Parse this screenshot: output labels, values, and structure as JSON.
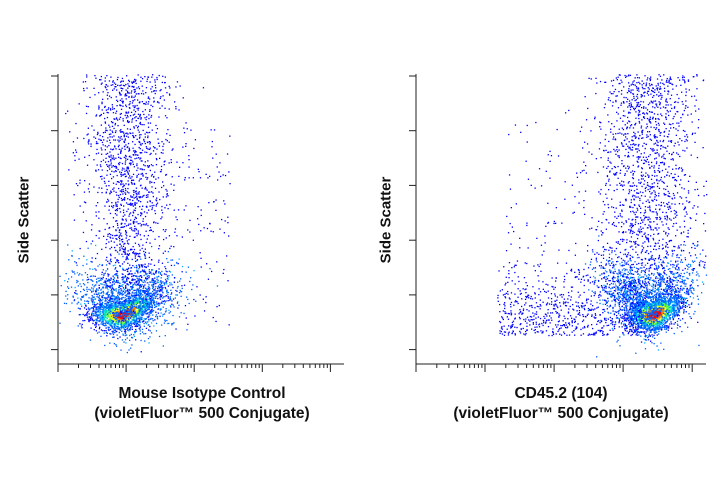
{
  "chart_data": [
    {
      "type": "scatter",
      "subtype": "flow-cytometry-density-dot-plot",
      "title": "",
      "xlabel": "Mouse Isotype Control",
      "xlabel_line2": "(violetFluor™ 500 Conjugate)",
      "ylabel": "Side Scatter",
      "x_scale": "log",
      "y_scale": "linear",
      "x_ticks_visible": true,
      "y_ticks_visible": true,
      "tick_labels_shown": false,
      "grid": false,
      "colormap": [
        "#0000ff",
        "#00a0ff",
        "#00e0c0",
        "#60ff40",
        "#ffff00",
        "#ff8000",
        "#ff0000"
      ],
      "populations": [
        {
          "name": "dense cluster",
          "x_center": 0.23,
          "y_center": 0.17,
          "density": "high"
        },
        {
          "name": "upper tail",
          "x_center": 0.24,
          "y_center": 0.6,
          "density": "low"
        }
      ]
    },
    {
      "type": "scatter",
      "subtype": "flow-cytometry-density-dot-plot",
      "title": "",
      "xlabel": "CD45.2 (104)",
      "xlabel_line2": "(violetFluor™ 500 Conjugate)",
      "ylabel": "Side Scatter",
      "x_scale": "log",
      "y_scale": "linear",
      "x_ticks_visible": true,
      "y_ticks_visible": true,
      "tick_labels_shown": false,
      "grid": false,
      "colormap": [
        "#0000ff",
        "#00a0ff",
        "#00e0c0",
        "#60ff40",
        "#ffff00",
        "#ff8000",
        "#ff0000"
      ],
      "populations": [
        {
          "name": "dense cluster",
          "x_center": 0.82,
          "y_center": 0.15,
          "density": "high"
        },
        {
          "name": "upper tail",
          "x_center": 0.78,
          "y_center": 0.6,
          "density": "low"
        },
        {
          "name": "negative spread",
          "x_center": 0.4,
          "y_center": 0.18,
          "density": "sparse"
        }
      ]
    }
  ]
}
